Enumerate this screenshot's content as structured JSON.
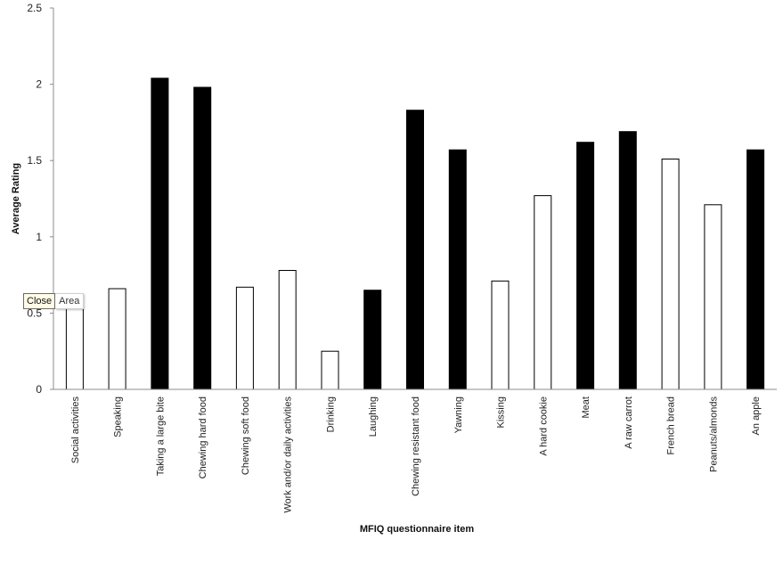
{
  "chart_data": {
    "type": "bar",
    "xlabel": "MFIQ questionnaire item",
    "ylabel": "Average Rating",
    "ylim": [
      0,
      2.5
    ],
    "yticks": [
      "0",
      "0.5",
      "1",
      "1.5",
      "2",
      "2.5"
    ],
    "ytick_values": [
      0,
      0.5,
      1,
      1.5,
      2,
      2.5
    ],
    "grid": false,
    "categories": [
      "Social activities",
      "Speaking",
      "Taking a large bite",
      "Chewing hard food",
      "Chewing soft food",
      "Work and/or daily activities",
      "Drinking",
      "Laughing",
      "Chewing resistant food",
      "Yawning",
      "Kissing",
      "A hard cookie",
      "Meat",
      "A raw carrot",
      "French bread",
      "Peanuts/almonds",
      "An apple"
    ],
    "values": [
      0.55,
      0.66,
      2.04,
      1.98,
      0.67,
      0.78,
      0.25,
      0.65,
      1.83,
      1.57,
      0.71,
      1.27,
      1.62,
      1.69,
      1.51,
      1.21,
      1.57
    ],
    "fills": [
      "white",
      "white",
      "black",
      "black",
      "white",
      "white",
      "white",
      "black",
      "black",
      "black",
      "white",
      "white",
      "black",
      "black",
      "white",
      "white",
      "black"
    ]
  },
  "colors": {
    "black": "#000000",
    "white": "#ffffff",
    "axis": "#8c8c8c",
    "outline": "#000000"
  },
  "tooltip": {
    "close_label": "Close",
    "area_label": "Area"
  }
}
